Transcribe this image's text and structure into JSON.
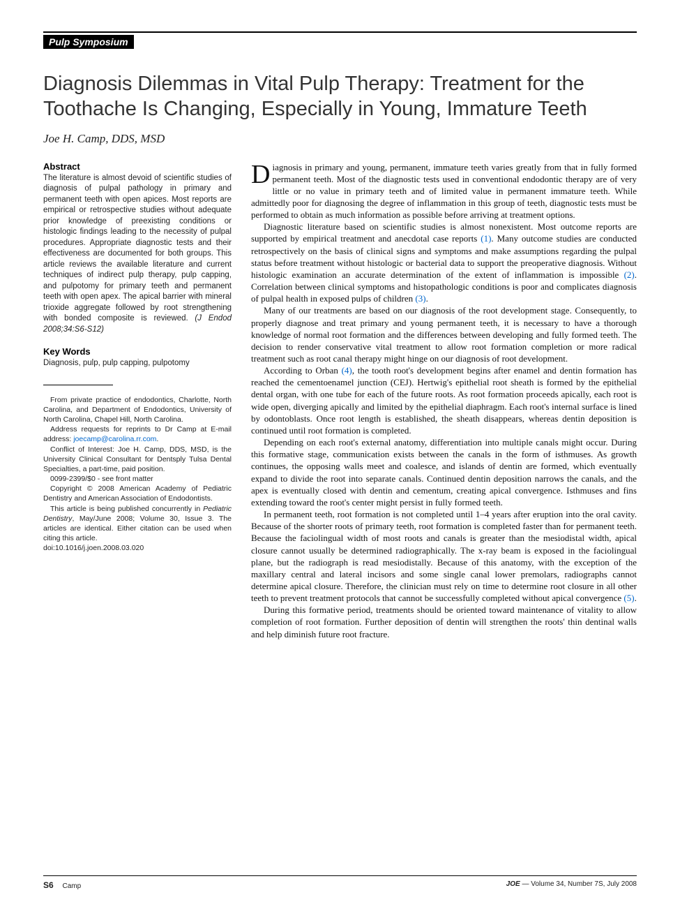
{
  "header": {
    "section_label": "Pulp Symposium"
  },
  "article": {
    "title": "Diagnosis Dilemmas in Vital Pulp Therapy: Treatment for the Toothache Is Changing, Especially in Young, Immature Teeth",
    "authors": "Joe H. Camp, DDS, MSD"
  },
  "abstract": {
    "heading": "Abstract",
    "text": "The literature is almost devoid of scientific studies of diagnosis of pulpal pathology in primary and permanent teeth with open apices. Most reports are empirical or retrospective studies without adequate prior knowledge of preexisting conditions or histologic findings leading to the necessity of pulpal procedures. Appropriate diagnostic tests and their effectiveness are documented for both groups. This article reviews the available literature and current techniques of indirect pulp therapy, pulp capping, and pulpotomy for primary teeth and permanent teeth with open apex. The apical barrier with mineral trioxide aggregate followed by root strengthening with bonded composite is reviewed.",
    "journal_ref": "(J Endod 2008;34:S6-S12)"
  },
  "keywords": {
    "heading": "Key Words",
    "text": "Diagnosis, pulp, pulp capping, pulpotomy"
  },
  "meta": {
    "affiliation": "From private practice of endodontics, Charlotte, North Carolina, and Department of Endodontics, University of North Carolina, Chapel Hill, North Carolina.",
    "reprints_pre": "Address requests for reprints to Dr Camp at E-mail address: ",
    "reprints_email": "joecamp@carolina.rr.com",
    "reprints_post": ".",
    "coi": "Conflict of Interest: Joe H. Camp, DDS, MSD, is the University Clinical Consultant for Dentsply Tulsa Dental Specialties, a part-time, paid position.",
    "issn": "0099-2399/$0 - see front matter",
    "copyright": "Copyright © 2008 American Academy of Pediatric Dentistry and American Association of Endodontists.",
    "concurrent_pre": "This article is being published concurrently in ",
    "concurrent_journal": "Pediatric Dentistry",
    "concurrent_post": ", May/June 2008; Volume 30, Issue 3. The articles are identical. Either citation can be used when citing this article.",
    "doi": "doi:10.1016/j.joen.2008.03.020"
  },
  "body": {
    "p1_dropcap": "D",
    "p1": "iagnosis in primary and young, permanent, immature teeth varies greatly from that in fully formed permanent teeth. Most of the diagnostic tests used in conventional endodontic therapy are of very little or no value in primary teeth and of limited value in permanent immature teeth. While admittedly poor for diagnosing the degree of inflammation in this group of teeth, diagnostic tests must be performed to obtain as much information as possible before arriving at treatment options.",
    "p2_a": "Diagnostic literature based on scientific studies is almost nonexistent. Most outcome reports are supported by empirical treatment and anecdotal case reports ",
    "p2_ref1": "(1)",
    "p2_b": ". Many outcome studies are conducted retrospectively on the basis of clinical signs and symptoms and make assumptions regarding the pulpal status before treatment without histologic or bacterial data to support the preoperative diagnosis. Without histologic examination an accurate determination of the extent of inflammation is impossible ",
    "p2_ref2": "(2)",
    "p2_c": ". Correlation between clinical symptoms and histopathologic conditions is poor and complicates diagnosis of pulpal health in exposed pulps of children ",
    "p2_ref3": "(3)",
    "p2_d": ".",
    "p3": "Many of our treatments are based on our diagnosis of the root development stage. Consequently, to properly diagnose and treat primary and young permanent teeth, it is necessary to have a thorough knowledge of normal root formation and the differences between developing and fully formed teeth. The decision to render conservative vital treatment to allow root formation completion or more radical treatment such as root canal therapy might hinge on our diagnosis of root development.",
    "p4_a": "According to Orban ",
    "p4_ref": "(4)",
    "p4_b": ", the tooth root's development begins after enamel and dentin formation has reached the cementoenamel junction (CEJ). Hertwig's epithelial root sheath is formed by the epithelial dental organ, with one tube for each of the future roots. As root formation proceeds apically, each root is wide open, diverging apically and limited by the epithelial diaphragm. Each root's internal surface is lined by odontoblasts. Once root length is established, the sheath disappears, whereas dentin deposition is continued until root formation is completed.",
    "p5": "Depending on each root's external anatomy, differentiation into multiple canals might occur. During this formative stage, communication exists between the canals in the form of isthmuses. As growth continues, the opposing walls meet and coalesce, and islands of dentin are formed, which eventually expand to divide the root into separate canals. Continued dentin deposition narrows the canals, and the apex is eventually closed with dentin and cementum, creating apical convergence. Isthmuses and fins extending toward the root's center might persist in fully formed teeth.",
    "p6_a": "In permanent teeth, root formation is not completed until 1–4 years after eruption into the oral cavity. Because of the shorter roots of primary teeth, root formation is completed faster than for permanent teeth. Because the faciolingual width of most roots and canals is greater than the mesiodistal width, apical closure cannot usually be determined radiographically. The x-ray beam is exposed in the faciolingual plane, but the radiograph is read mesiodistally. Because of this anatomy, with the exception of the maxillary central and lateral incisors and some single canal lower premolars, radiographs cannot determine apical closure. Therefore, the clinician must rely on time to determine root closure in all other teeth to prevent treatment protocols that cannot be successfully completed without apical convergence ",
    "p6_ref": "(5)",
    "p6_b": ".",
    "p7": "During this formative period, treatments should be oriented toward maintenance of vitality to allow completion of root formation. Further deposition of dentin will strengthen the roots' thin dentinal walls and help diminish future root fracture."
  },
  "footer": {
    "page": "S6",
    "author": "Camp",
    "journal": "JOE",
    "issue": " — Volume 34, Number 7S, July 2008"
  },
  "styles": {
    "link_color": "#0066cc",
    "text_color": "#111111",
    "bg_color": "#ffffff"
  }
}
